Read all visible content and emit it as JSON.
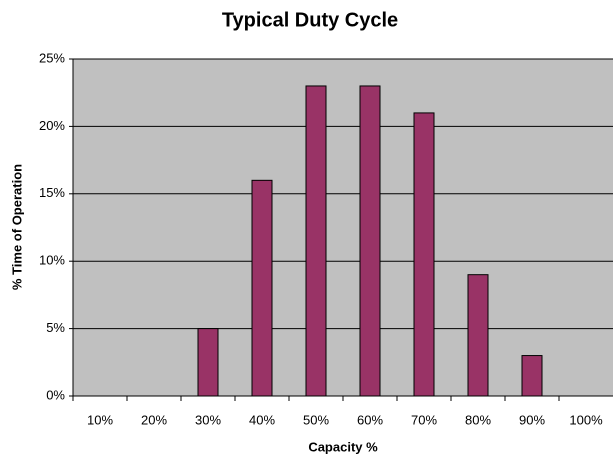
{
  "chart_data": {
    "type": "bar",
    "title": "Typical Duty Cycle",
    "xlabel": "Capacity %",
    "ylabel": "% Time of Operation",
    "categories": [
      "10%",
      "20%",
      "30%",
      "40%",
      "50%",
      "60%",
      "70%",
      "80%",
      "90%",
      "100%"
    ],
    "values": [
      0,
      0,
      5,
      16,
      23,
      23,
      21,
      9,
      3,
      0
    ],
    "color": "#993366",
    "ylim": [
      0,
      25
    ],
    "yticks": [
      {
        "value": 0,
        "label": "0%"
      },
      {
        "value": 5,
        "label": "5%"
      },
      {
        "value": 10,
        "label": "10%"
      },
      {
        "value": 15,
        "label": "15%"
      },
      {
        "value": 20,
        "label": "20%"
      },
      {
        "value": 25,
        "label": "25%"
      }
    ],
    "grid": true
  }
}
